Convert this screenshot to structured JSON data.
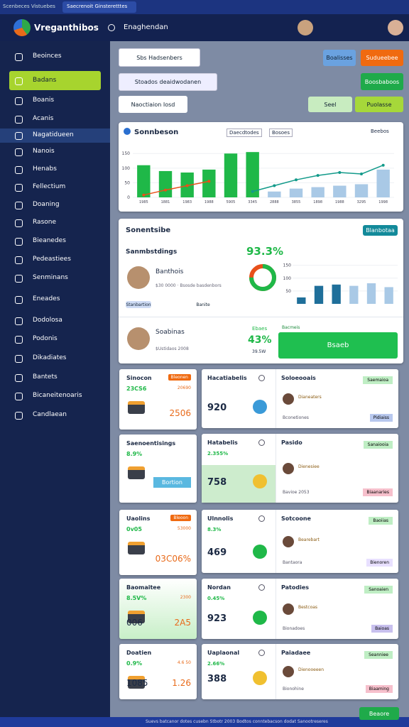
{
  "browser_tabs": [
    "Scenbeces Vistuebes",
    "Saecrenoit Ginsteretttes"
  ],
  "header": {
    "title": "Vreganthibos",
    "search": "Enaghendan"
  },
  "sidebar": {
    "items": [
      "Beoinces",
      "Badans",
      "Boanis",
      "Acanis",
      "Nagatidueen",
      "Nanois",
      "Henabs",
      "Fellectium",
      "Doaning",
      "Rasone",
      "Bieanedes",
      "Pedeastiees",
      "Senminans",
      "Eneades",
      "Dodolosa",
      "Podonis",
      "Dikadiates",
      "Bantets",
      "Bicaneitenoaris",
      "Candlaean"
    ]
  },
  "toolbar": {
    "dropdown": "Sbs Hadsenbers",
    "filter": "Stoados deaidwodanen",
    "search": "Naoctiaion Iosd",
    "buttons": [
      "Boalisses",
      "Sudueebee",
      "Boosbaboos",
      "Seel",
      "Puolasse"
    ]
  },
  "overview_chart": {
    "title": "Sonnbeson",
    "filters": [
      "Daecdtodes",
      "Bosoes",
      "Beebos"
    ],
    "categories": [
      "1985",
      "1881",
      "1983",
      "1988",
      "5905",
      "3345",
      "2888",
      "3855",
      "1898",
      "1988",
      "3295",
      "1998"
    ],
    "ylim": [
      0,
      170
    ],
    "yticks": [
      0,
      50,
      100,
      150
    ],
    "series": [
      {
        "color": "#1fb848",
        "values": [
          110,
          90,
          85,
          95,
          150,
          155,
          null,
          null,
          null,
          null,
          null,
          null
        ]
      },
      {
        "color": "#a9c9e6",
        "values": [
          null,
          null,
          null,
          null,
          null,
          null,
          20,
          30,
          35,
          40,
          45,
          95
        ]
      }
    ],
    "lines": [
      {
        "color": "#e8501a",
        "values": [
          8,
          25,
          40,
          55,
          null,
          null,
          null,
          null,
          null,
          null,
          null,
          null
        ]
      },
      {
        "color": "#129a8a",
        "values": [
          null,
          null,
          null,
          null,
          null,
          20,
          40,
          60,
          75,
          85,
          80,
          110
        ]
      }
    ]
  },
  "summary": {
    "title": "Sonentsibe",
    "button": "Blanbotaa",
    "subtitle": "Sanmbstdings",
    "percent": "93.3%",
    "donut_value": 75,
    "bars": {
      "ylim": [
        0,
        160
      ],
      "yticks": [
        50,
        100,
        150
      ],
      "values": [
        25,
        70,
        75,
        70,
        80,
        65
      ],
      "colors": [
        "#1f6f9a",
        "#1f6f9a",
        "#1f6f9a",
        "#a9c9e6",
        "#a9c9e6",
        "#a9c9e6"
      ]
    },
    "person1": {
      "name": "Banthois",
      "sub": "$30 0000 · Bsosde basdenbors",
      "buttons": [
        "Stanbartion",
        "Banite"
      ]
    },
    "person2": {
      "name": "Soabinas",
      "sub": "$Ustidaos 2008",
      "label": "Ebaes",
      "big": "43%",
      "small": "39.5W",
      "note": "Bacmeis",
      "button": "Bsaeb"
    }
  },
  "stat_cards": [
    {
      "title": "Sinocon",
      "badge": "Bleonen",
      "pct": "23CS6",
      "sub": "20690",
      "big": "2506"
    },
    {
      "title": "Saenoentisings",
      "pct": "8.9%",
      "sub": "",
      "big": "Bortion"
    },
    {
      "title": "Uaolins",
      "badge": "Bleoon",
      "pct": "0v05",
      "sub": "53000",
      "big": "03C06%"
    },
    {
      "title": "Baomaitee",
      "pct": "8.5V%",
      "sub": "2300",
      "big": "2A5",
      "big2": "006"
    },
    {
      "title": "Doatien",
      "pct": "0.9%",
      "sub": "4.6 50",
      "big": "1.26",
      "big2": "1085"
    }
  ],
  "wide_cards": [
    {
      "title": "Hacatiabelis",
      "pct": "",
      "value": "920",
      "side_title": "Soloeooais",
      "tag": "Saemaioa",
      "person": "Dianeaters",
      "note": "Bconetiones",
      "chip": "Pidiaiss"
    },
    {
      "title": "Hatabelis",
      "pct": "2.355%",
      "value": "758",
      "side_title": "Pasido",
      "tag": "Sanaiooia",
      "person": "Dienesiee",
      "note": "Bavioe 2053",
      "chip": "Biaanaries"
    },
    {
      "title": "Ulnnolis",
      "pct": "8.3%",
      "value": "469",
      "side_title": "Sotcoone",
      "tag": "Baoiias",
      "person": "Bearebart",
      "note": "Bantaora",
      "chip": "Bienoren"
    },
    {
      "title": "Nordan",
      "pct": "0.45%",
      "value": "923",
      "side_title": "Patodies",
      "tag": "Sanoaien",
      "person": "Bestcoas",
      "note": "Bionadoes",
      "chip": "Baioas"
    },
    {
      "title": "Uaplaonal",
      "pct": "2.66%",
      "value": "388",
      "side_title": "Paiadaee",
      "tag": "Seanniee",
      "person": "Dienooeeen",
      "note": "Bionohine",
      "chip": "Biaaming"
    }
  ],
  "footer": {
    "button": "Beaore",
    "text": "Suevs batcanor dotes cusebn Stbotr 2003 Bodtos conntebacson dodat Sanootreseres"
  }
}
